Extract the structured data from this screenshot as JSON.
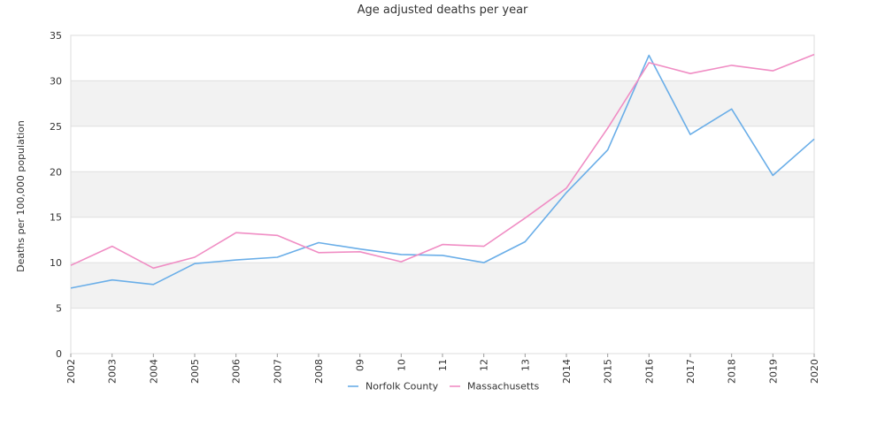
{
  "chart_data": {
    "type": "line",
    "title": "Age adjusted deaths per year",
    "xlabel": "",
    "ylabel": "Deaths per 100,000 population",
    "x": [
      "2002",
      "2003",
      "2004",
      "2005",
      "2006",
      "2007",
      "2008",
      "09",
      "10",
      "11",
      "12",
      "13",
      "2014",
      "2015",
      "2016",
      "2017",
      "2018",
      "2019",
      "2020"
    ],
    "ylim": [
      0,
      35
    ],
    "yticks": [
      0,
      5,
      10,
      15,
      20,
      25,
      30,
      35
    ],
    "grid": true,
    "legend": "bottom-center",
    "series": [
      {
        "name": "Norfolk County",
        "color": "#6aaee8",
        "values": [
          7.2,
          8.1,
          7.6,
          9.9,
          10.3,
          10.6,
          12.2,
          11.5,
          10.9,
          10.8,
          10.0,
          12.3,
          17.7,
          22.4,
          32.8,
          24.1,
          26.9,
          19.6,
          23.6
        ]
      },
      {
        "name": "Massachusetts",
        "color": "#f08dc4",
        "values": [
          9.7,
          11.8,
          9.4,
          10.6,
          13.3,
          13.0,
          11.1,
          11.2,
          10.1,
          12.0,
          11.8,
          14.9,
          18.2,
          24.8,
          32.0,
          30.8,
          31.7,
          31.1,
          32.9
        ]
      }
    ]
  }
}
